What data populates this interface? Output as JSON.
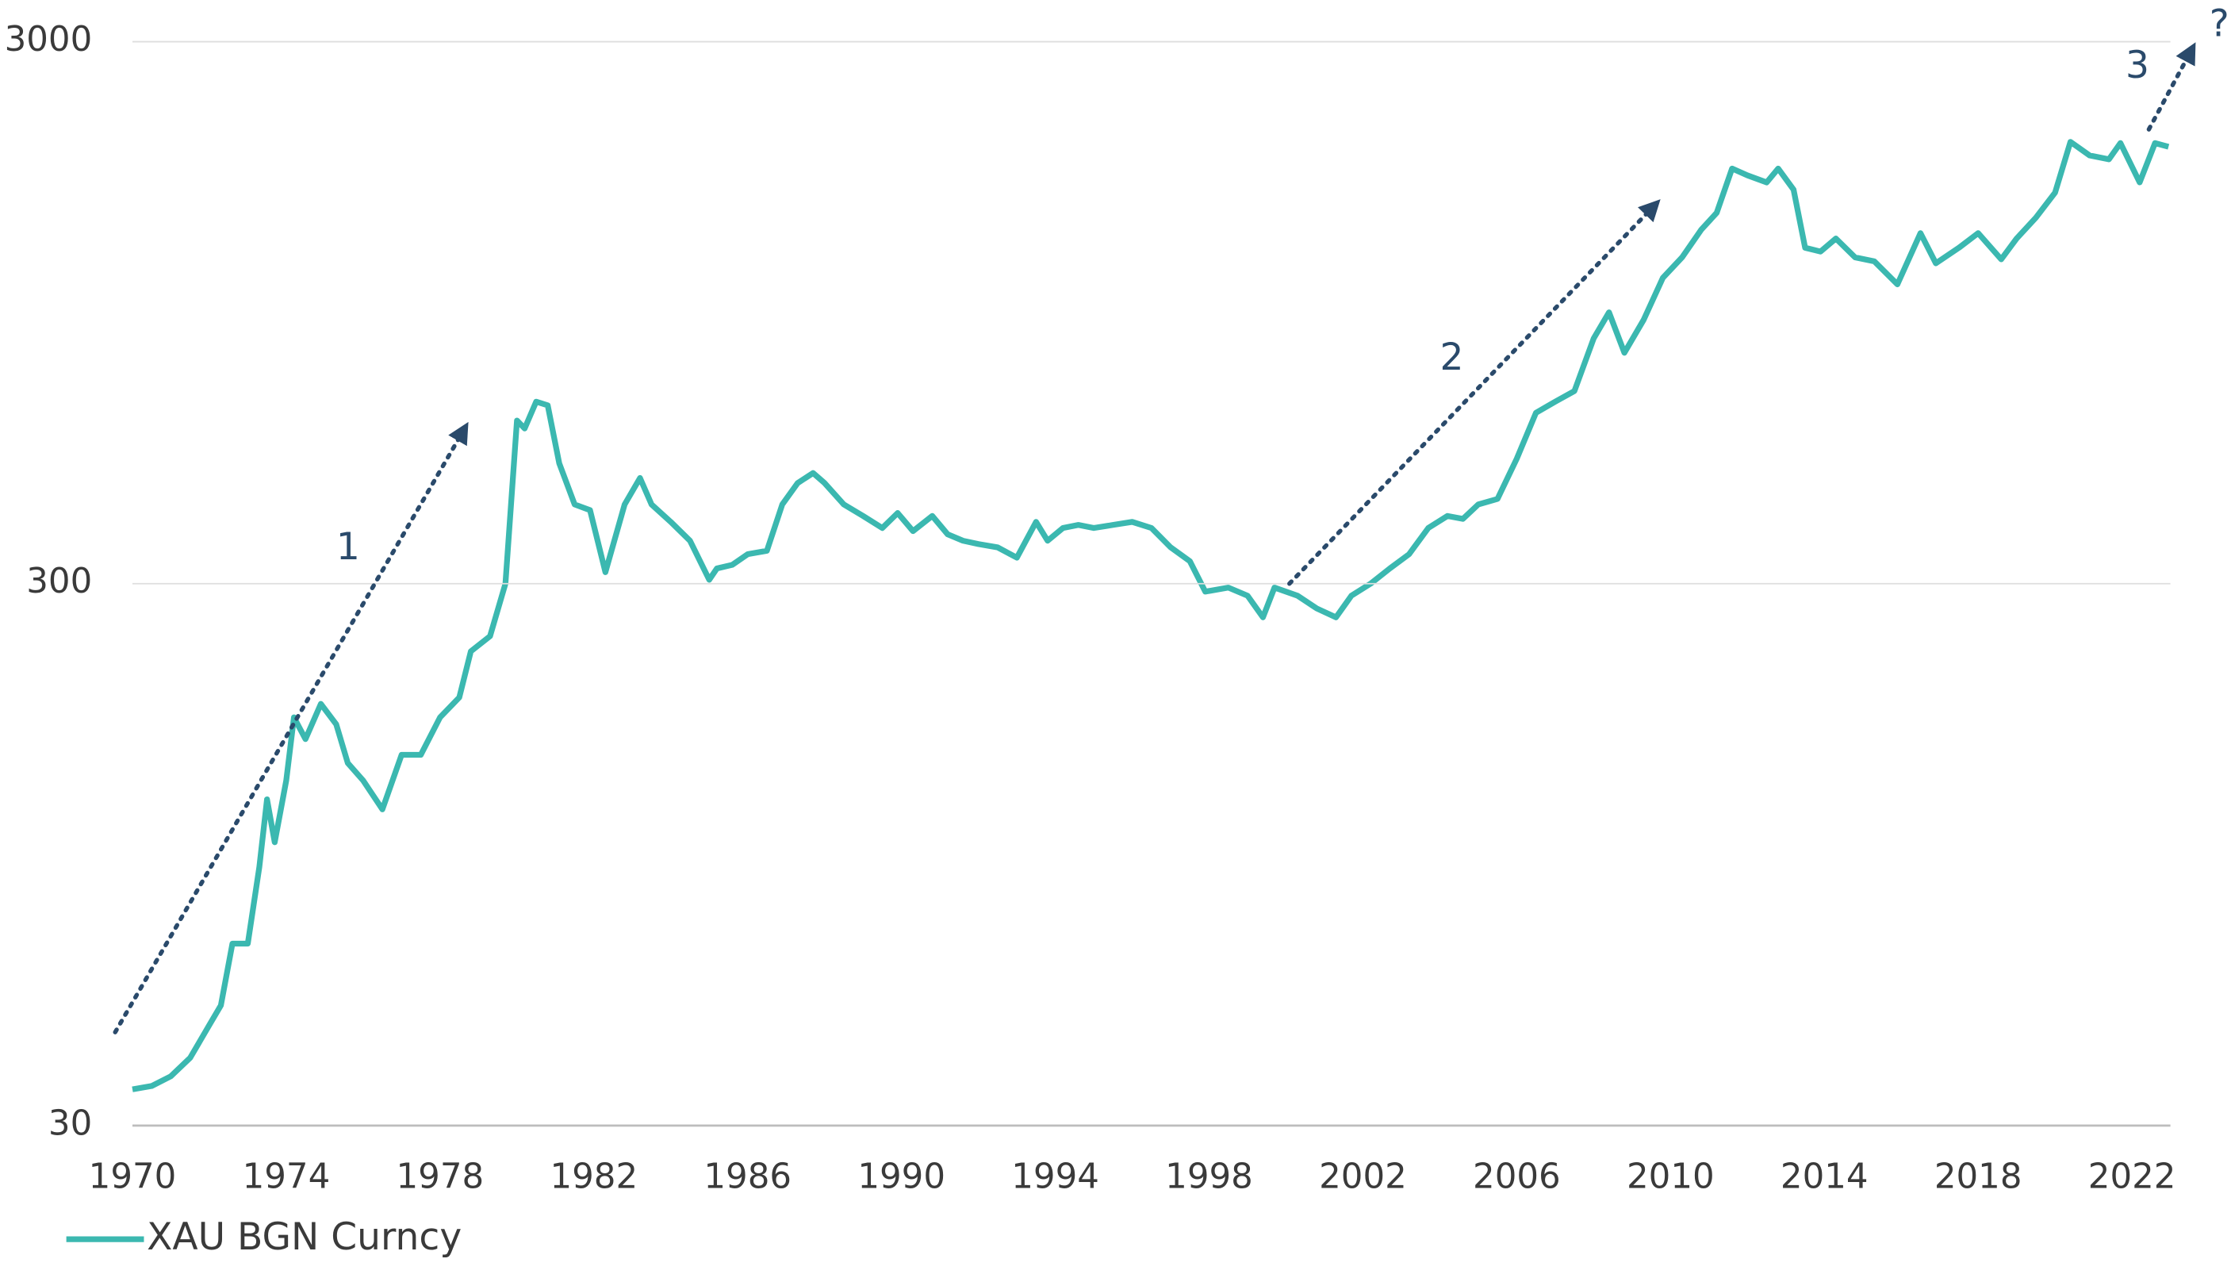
{
  "chart_data": {
    "type": "line",
    "x": [
      1970.0,
      1970.5,
      1971.0,
      1971.5,
      1972.0,
      1972.3,
      1972.6,
      1973.0,
      1973.3,
      1973.5,
      1973.7,
      1974.0,
      1974.2,
      1974.5,
      1974.9,
      1975.3,
      1975.6,
      1976.0,
      1976.5,
      1977.0,
      1977.5,
      1978.0,
      1978.5,
      1978.8,
      1979.3,
      1979.7,
      1980.0,
      1980.2,
      1980.5,
      1980.8,
      1981.1,
      1981.5,
      1981.9,
      1982.3,
      1982.8,
      1983.2,
      1983.5,
      1984.0,
      1984.5,
      1985.0,
      1985.2,
      1985.6,
      1986.0,
      1986.5,
      1986.9,
      1987.3,
      1987.7,
      1988.0,
      1988.5,
      1989.0,
      1989.5,
      1989.9,
      1990.3,
      1990.8,
      1991.2,
      1991.6,
      1992.0,
      1992.5,
      1993.0,
      1993.5,
      1993.8,
      1994.2,
      1994.6,
      1995.0,
      1995.5,
      1996.0,
      1996.5,
      1997.0,
      1997.5,
      1997.9,
      1998.5,
      1999.0,
      1999.4,
      1999.7,
      2000.3,
      2000.8,
      2001.3,
      2001.7,
      2002.2,
      2002.7,
      2003.2,
      2003.7,
      2004.2,
      2004.6,
      2005.0,
      2005.5,
      2006.0,
      2006.5,
      2007.0,
      2007.5,
      2008.0,
      2008.4,
      2008.8,
      2009.3,
      2009.8,
      2010.3,
      2010.8,
      2011.2,
      2011.6,
      2012.0,
      2012.5,
      2012.8,
      2013.2,
      2013.5,
      2013.9,
      2014.3,
      2014.8,
      2015.3,
      2015.9,
      2016.5,
      2016.9,
      2017.5,
      2018.0,
      2018.6,
      2019.0,
      2019.5,
      2020.0,
      2020.4,
      2020.9,
      2021.4,
      2021.7,
      2022.2,
      2022.6,
      2022.95
    ],
    "series": [
      {
        "name": "XAU BGN Curncy",
        "color": "#3bb8b0",
        "values": [
          35,
          35.5,
          37,
          40,
          46,
          50,
          65,
          65,
          90,
          120,
          100,
          130,
          170,
          155,
          180,
          165,
          140,
          130,
          115,
          145,
          145,
          170,
          185,
          225,
          240,
          300,
          600,
          580,
          650,
          640,
          500,
          420,
          410,
          315,
          420,
          470,
          420,
          390,
          360,
          305,
          320,
          325,
          340,
          345,
          420,
          460,
          480,
          460,
          420,
          400,
          380,
          405,
          375,
          400,
          370,
          360,
          355,
          350,
          335,
          390,
          360,
          380,
          385,
          380,
          385,
          390,
          380,
          350,
          330,
          290,
          295,
          285,
          260,
          295,
          285,
          270,
          260,
          285,
          300,
          320,
          340,
          380,
          400,
          395,
          420,
          430,
          510,
          620,
          650,
          680,
          850,
          950,
          800,
          920,
          1100,
          1200,
          1350,
          1450,
          1750,
          1700,
          1650,
          1750,
          1600,
          1250,
          1230,
          1300,
          1200,
          1180,
          1070,
          1330,
          1170,
          1250,
          1330,
          1190,
          1300,
          1420,
          1580,
          1960,
          1850,
          1820,
          1950,
          1650,
          1950,
          1920
        ]
      }
    ],
    "xlim": [
      1970,
      2023
    ],
    "xticks": [
      1970,
      1974,
      1978,
      1982,
      1986,
      1990,
      1994,
      1998,
      2002,
      2006,
      2010,
      2014,
      2018,
      2022
    ],
    "ylim": [
      30,
      3000
    ],
    "yticks": [
      30,
      300,
      3000
    ],
    "log_scale": "y",
    "grid": true,
    "legend": "bottom-left",
    "annotations": [
      "1",
      "2",
      "3",
      "?"
    ]
  }
}
